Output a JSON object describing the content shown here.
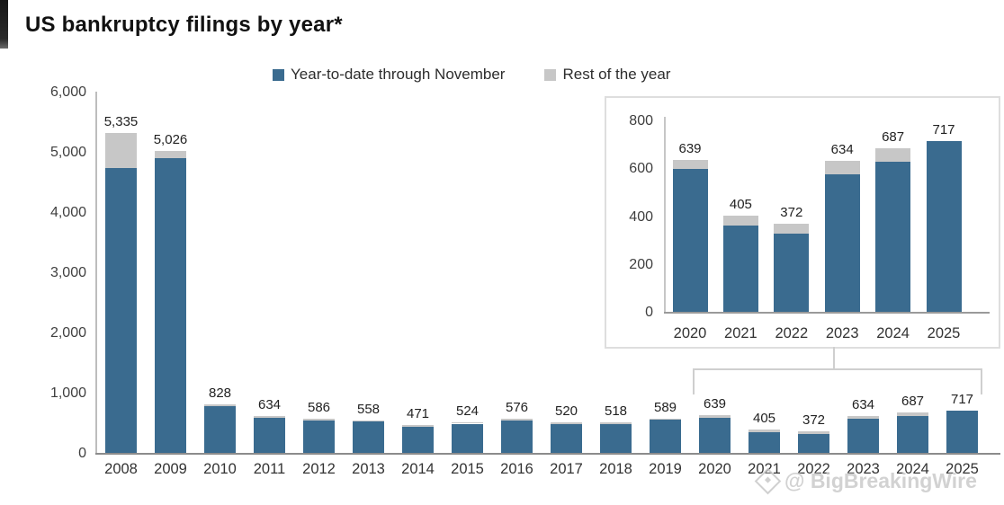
{
  "page": {
    "title": "US bankruptcy filings by year*"
  },
  "legend": {
    "items": [
      {
        "label": "Year-to-date through November",
        "color": "#3a6b8f"
      },
      {
        "label": "Rest of the year",
        "color": "#c7c7c7"
      }
    ]
  },
  "watermark": {
    "icon": "diamond-logo-icon",
    "handle": "@ BigBreakingWire"
  },
  "chart_data": [
    {
      "id": "main",
      "type": "bar",
      "stacked": true,
      "title": "US bankruptcy filings by year*",
      "xlabel": "",
      "ylabel": "",
      "ylim": [
        0,
        6000
      ],
      "grid": false,
      "legend_position": "top",
      "categories": [
        "2008",
        "2009",
        "2010",
        "2011",
        "2012",
        "2013",
        "2014",
        "2015",
        "2016",
        "2017",
        "2018",
        "2019",
        "2020",
        "2021",
        "2022",
        "2023",
        "2024",
        "2025"
      ],
      "totals": [
        5335,
        5026,
        828,
        634,
        586,
        558,
        471,
        524,
        576,
        520,
        518,
        589,
        639,
        405,
        372,
        634,
        687,
        717
      ],
      "total_labels": [
        "5,335",
        "5,026",
        "828",
        "634",
        "586",
        "558",
        "471",
        "524",
        "576",
        "520",
        "518",
        "589",
        "639",
        "405",
        "372",
        "634",
        "687",
        "717"
      ],
      "series": [
        {
          "name": "Year-to-date through November",
          "color": "#3a6b8f",
          "values": [
            4750,
            4910,
            790,
            600,
            555,
            530,
            450,
            500,
            550,
            495,
            495,
            560,
            600,
            365,
            330,
            580,
            630,
            717
          ],
          "note": "estimated from bar pixel heights; only totals are labeled on chart"
        },
        {
          "name": "Rest of the year",
          "color": "#c7c7c7",
          "values": [
            585,
            116,
            38,
            34,
            31,
            28,
            21,
            24,
            26,
            25,
            23,
            29,
            39,
            40,
            42,
            54,
            57,
            0
          ],
          "note": "total minus estimated YTD"
        }
      ],
      "yticks": [
        "0",
        "1,000",
        "2,000",
        "3,000",
        "4,000",
        "5,000",
        "6,000"
      ]
    },
    {
      "id": "inset",
      "type": "bar",
      "stacked": true,
      "title": "",
      "xlabel": "",
      "ylabel": "",
      "ylim": [
        0,
        800
      ],
      "grid": false,
      "legend_position": "none",
      "categories": [
        "2020",
        "2021",
        "2022",
        "2023",
        "2024",
        "2025"
      ],
      "totals": [
        639,
        405,
        372,
        634,
        687,
        717
      ],
      "total_labels": [
        "639",
        "405",
        "372",
        "634",
        "687",
        "717"
      ],
      "series": [
        {
          "name": "Year-to-date through November",
          "color": "#3a6b8f",
          "values": [
            600,
            365,
            330,
            580,
            630,
            717
          ]
        },
        {
          "name": "Rest of the year",
          "color": "#c7c7c7",
          "values": [
            39,
            40,
            42,
            54,
            57,
            0
          ]
        }
      ],
      "yticks": [
        "0",
        "200",
        "400",
        "600",
        "800"
      ]
    }
  ]
}
